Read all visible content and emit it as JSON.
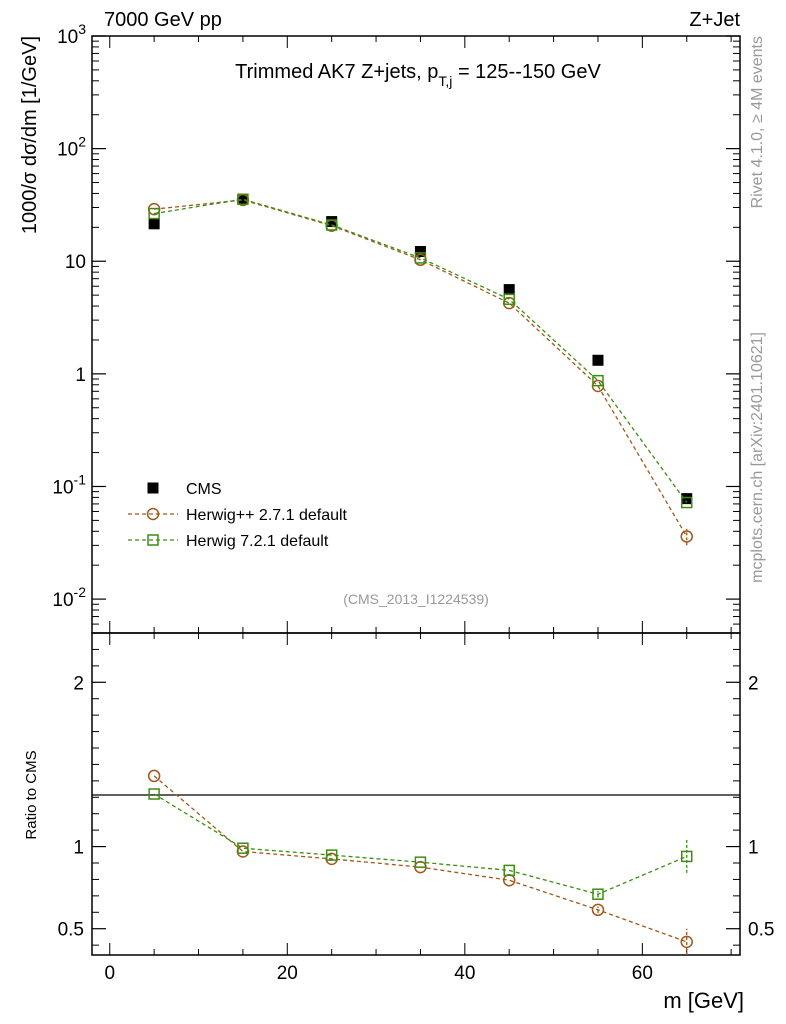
{
  "header": {
    "left": "7000 GeV pp",
    "right": "Z+Jet",
    "side_top": "Rivet 4.1.0, ≥ 4M events",
    "side_bottom": "mcplots.cern.ch [arXiv:2401.10621]",
    "analysis_id": "(CMS_2013_I1224539)"
  },
  "chart_data": [
    {
      "type": "scatter",
      "panel": "main",
      "title": "Trimmed AK7 Z+jets, p",
      "title_sub": "T,j",
      "title_tail": " = 125--150 GeV",
      "ylabel": "1000/σ  dσ/dm [1/GeV]",
      "yscale": "log",
      "ylim": [
        0.005,
        1000
      ],
      "xlim": [
        -2,
        71
      ],
      "yticks": [
        {
          "value": 0.01,
          "base": "10",
          "exp": "-2"
        },
        {
          "value": 0.1,
          "base": "10",
          "exp": "-1"
        },
        {
          "value": 1,
          "base": "1",
          "exp": ""
        },
        {
          "value": 10,
          "base": "10",
          "exp": ""
        },
        {
          "value": 100,
          "base": "10",
          "exp": "2"
        },
        {
          "value": 1000,
          "base": "10",
          "exp": "3"
        }
      ],
      "x": [
        5,
        15,
        25,
        35,
        45,
        55,
        65
      ],
      "series": [
        {
          "name": "CMS",
          "color": "#000000",
          "marker": "filled-square",
          "values": [
            21.5,
            35.5,
            22.5,
            12.2,
            5.6,
            1.32,
            0.078
          ]
        },
        {
          "name": "Herwig++ 2.7.1 default",
          "color": "#a0581c",
          "marker": "open-circle",
          "values": [
            29.0,
            35.0,
            20.7,
            10.3,
            4.25,
            0.78,
            0.036
          ],
          "errors": [
            0,
            0,
            0,
            0,
            0,
            0,
            0.006
          ]
        },
        {
          "name": "Herwig 7.2.1 default",
          "color": "#3c8e12",
          "marker": "open-square",
          "values": [
            26.5,
            35.5,
            21.0,
            10.7,
            4.6,
            0.87,
            0.072
          ]
        }
      ]
    },
    {
      "type": "scatter",
      "panel": "ratio",
      "ylabel": "Ratio to CMS",
      "xlabel": "m [GeV]",
      "ylim": [
        0.34,
        2.3
      ],
      "xlim": [
        -2,
        71
      ],
      "yticks": [
        {
          "value": 0.5,
          "label": "0.5"
        },
        {
          "value": 1,
          "label": "1"
        },
        {
          "value": 2,
          "label": "2"
        }
      ],
      "xticks": [
        0,
        20,
        40,
        60
      ],
      "x": [
        5,
        15,
        25,
        35,
        45,
        55,
        65
      ],
      "series": [
        {
          "name": "Herwig++ 2.7.1 default",
          "color": "#a0581c",
          "marker": "open-circle",
          "values": [
            1.43,
            0.97,
            0.925,
            0.875,
            0.795,
            0.615,
            0.42
          ],
          "errors": [
            0,
            0,
            0,
            0,
            0,
            0.02,
            0.08
          ]
        },
        {
          "name": "Herwig 7.2.1 default",
          "color": "#3c8e12",
          "marker": "open-square",
          "values": [
            1.32,
            0.99,
            0.948,
            0.905,
            0.855,
            0.71,
            0.94
          ],
          "errors": [
            0,
            0,
            0,
            0,
            0,
            0.02,
            0.1
          ]
        }
      ]
    }
  ]
}
